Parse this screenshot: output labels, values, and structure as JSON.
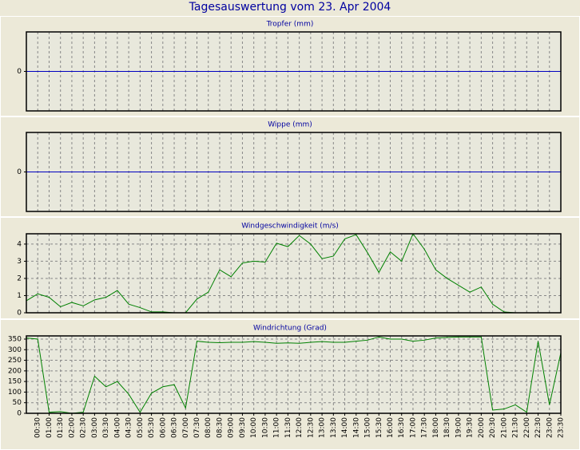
{
  "page_title": "Tagesauswertung vom 23. Apr 2004",
  "chart_data": [
    {
      "type": "line",
      "title": "Tropfer (mm)",
      "ylim": [
        -1,
        1
      ],
      "yticks": [
        0
      ],
      "grid": true,
      "series": [
        {
          "color": "#0000c0",
          "values": [
            0,
            0,
            0,
            0,
            0,
            0,
            0,
            0,
            0,
            0,
            0,
            0,
            0,
            0,
            0,
            0,
            0,
            0,
            0,
            0,
            0,
            0,
            0,
            0,
            0,
            0,
            0,
            0,
            0,
            0,
            0,
            0,
            0,
            0,
            0,
            0,
            0,
            0,
            0,
            0,
            0,
            0,
            0,
            0,
            0,
            0,
            0,
            0
          ]
        }
      ]
    },
    {
      "type": "line",
      "title": "Wippe (mm)",
      "ylim": [
        -1,
        1
      ],
      "yticks": [
        0
      ],
      "grid": true,
      "series": [
        {
          "color": "#0000c0",
          "values": [
            0,
            0,
            0,
            0,
            0,
            0,
            0,
            0,
            0,
            0,
            0,
            0,
            0,
            0,
            0,
            0,
            0,
            0,
            0,
            0,
            0,
            0,
            0,
            0,
            0,
            0,
            0,
            0,
            0,
            0,
            0,
            0,
            0,
            0,
            0,
            0,
            0,
            0,
            0,
            0,
            0,
            0,
            0,
            0,
            0,
            0,
            0,
            0
          ]
        }
      ]
    },
    {
      "type": "line",
      "title": "Windgeschwindigkeit (m/s)",
      "ylim": [
        0,
        4.6
      ],
      "yticks": [
        0,
        1,
        2,
        3,
        4
      ],
      "grid": true,
      "series": [
        {
          "color": "#008000",
          "values": [
            0.7,
            1.1,
            0.9,
            0.35,
            0.6,
            0.4,
            0.75,
            0.9,
            1.3,
            0.5,
            0.3,
            0.05,
            0.05,
            0,
            0,
            0.8,
            1.2,
            2.5,
            2.1,
            2.9,
            3.0,
            2.95,
            4.05,
            3.85,
            4.5,
            4.0,
            3.15,
            3.3,
            4.3,
            4.55,
            3.5,
            2.35,
            3.55,
            3.0,
            4.6,
            3.7,
            2.5,
            2.0,
            1.6,
            1.2,
            1.5,
            0.5,
            0.05,
            0,
            0,
            0,
            0,
            0
          ]
        }
      ]
    },
    {
      "type": "line",
      "title": "Windrichtung (Grad)",
      "ylim": [
        0,
        365
      ],
      "yticks": [
        0,
        50,
        100,
        150,
        200,
        250,
        300,
        350
      ],
      "grid": true,
      "categories": [
        null,
        "00:30",
        "01:00",
        "01:30",
        "02:00",
        "02:30",
        "03:00",
        "03:30",
        "04:00",
        "04:30",
        "05:00",
        "05:30",
        "06:00",
        "06:30",
        "07:00",
        "07:30",
        "08:00",
        "08:30",
        "09:00",
        "09:30",
        "10:00",
        "10:30",
        "11:00",
        "11:30",
        "12:00",
        "12:30",
        "13:00",
        "13:30",
        "14:00",
        "14:30",
        "15:00",
        "15:30",
        "16:00",
        "16:30",
        "17:00",
        "17:30",
        "18:00",
        "18:30",
        "19:00",
        "19:30",
        "20:00",
        "20:30",
        "21:00",
        "21:30",
        "22:00",
        "22:30",
        "23:00",
        "23:30"
      ],
      "series": [
        {
          "color": "#008000",
          "values": [
            355,
            350,
            5,
            8,
            0,
            5,
            175,
            125,
            150,
            90,
            5,
            95,
            125,
            135,
            25,
            340,
            335,
            333,
            335,
            335,
            338,
            335,
            330,
            332,
            330,
            335,
            338,
            335,
            335,
            340,
            345,
            360,
            350,
            350,
            340,
            345,
            355,
            358,
            360,
            360,
            360,
            15,
            20,
            40,
            5,
            340,
            40,
            285
          ]
        }
      ]
    }
  ]
}
